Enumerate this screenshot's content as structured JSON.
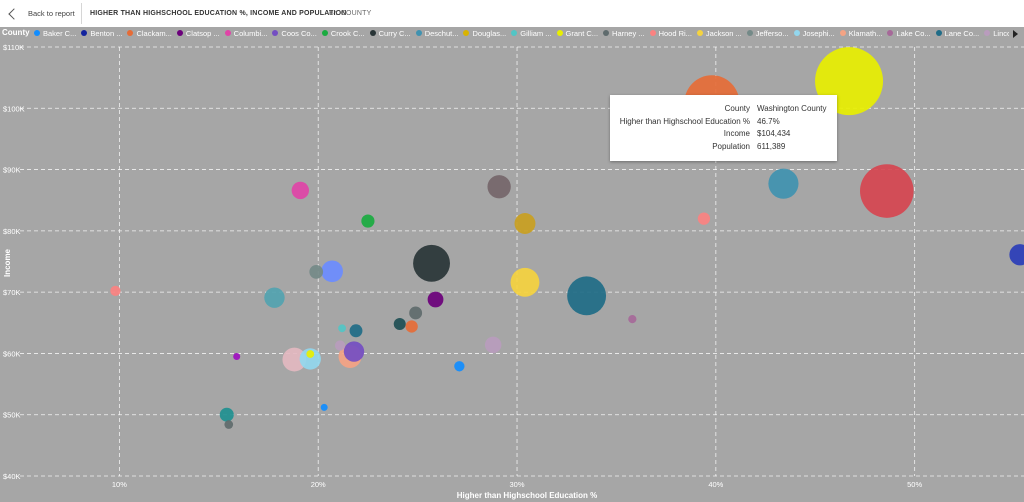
{
  "header": {
    "back_label": "Back to report",
    "title": "HIGHER THAN HIGHSCHOOL EDUCATION %, INCOME AND POPULATION",
    "subtitle": "BY COUNTY"
  },
  "legend": {
    "title": "County",
    "items": [
      {
        "label": "Baker C...",
        "color": "#118dff"
      },
      {
        "label": "Benton ...",
        "color": "#12239e"
      },
      {
        "label": "Clackam...",
        "color": "#e66c37"
      },
      {
        "label": "Clatsop ...",
        "color": "#6b007b"
      },
      {
        "label": "Columbi...",
        "color": "#e044a7"
      },
      {
        "label": "Coos Co...",
        "color": "#744ec2"
      },
      {
        "label": "Crook C...",
        "color": "#1aab40"
      },
      {
        "label": "Curry C...",
        "color": "#293537"
      },
      {
        "label": "Deschut...",
        "color": "#4092b0"
      },
      {
        "label": "Douglas...",
        "color": "#d9b300"
      },
      {
        "label": "Gilliam ...",
        "color": "#52c5c5"
      },
      {
        "label": "Grant C...",
        "color": "#e8ef00"
      },
      {
        "label": "Harney ...",
        "color": "#5f6b6d"
      },
      {
        "label": "Hood Ri...",
        "color": "#fb8281"
      },
      {
        "label": "Jackson ...",
        "color": "#f5d33f"
      },
      {
        "label": "Jefferso...",
        "color": "#748a88"
      },
      {
        "label": "Josephi...",
        "color": "#93d7ee"
      },
      {
        "label": "Klamath...",
        "color": "#f4a384"
      },
      {
        "label": "Lake Co...",
        "color": "#a66999"
      },
      {
        "label": "Lane Co...",
        "color": "#1f6c87"
      },
      {
        "label": "Lincoln ...",
        "color": "#b99cbd"
      }
    ]
  },
  "tooltip": {
    "rows": [
      {
        "key": "County",
        "value": "Washington County"
      },
      {
        "key": "Higher than Highschool Education %",
        "value": "46.7%"
      },
      {
        "key": "Income",
        "value": "$104,434"
      },
      {
        "key": "Population",
        "value": "611,389"
      }
    ]
  },
  "chart_data": {
    "type": "scatter",
    "xlabel": "Higher than Highschool Education %",
    "ylabel": "Income",
    "xlim": [
      5,
      55.5
    ],
    "ylim": [
      40000,
      110000
    ],
    "x_ticks": [
      10,
      20,
      30,
      40,
      50
    ],
    "x_tick_labels": [
      "10%",
      "20%",
      "30%",
      "40%",
      "50%"
    ],
    "y_ticks": [
      40000,
      50000,
      60000,
      70000,
      80000,
      90000,
      100000,
      110000
    ],
    "y_tick_labels": [
      "$40K",
      "$50K",
      "$60K",
      "$70K",
      "$80K",
      "$90K",
      "$100K",
      "$110K"
    ],
    "grid": true,
    "points": [
      {
        "x": 46.7,
        "y": 104434,
        "population": 611389,
        "color": "#e8ef00"
      },
      {
        "x": 39.8,
        "y": 100900,
        "population": 400000,
        "color": "#e66c37"
      },
      {
        "x": 48.6,
        "y": 86500,
        "population": 380000,
        "color": "#d64550"
      },
      {
        "x": 43.4,
        "y": 87700,
        "population": 120000,
        "color": "#4092b0"
      },
      {
        "x": 55.3,
        "y": 76100,
        "population": 60000,
        "color": "#2a3db8"
      },
      {
        "x": 39.4,
        "y": 82000,
        "population": 20000,
        "color": "#fb8281"
      },
      {
        "x": 29.1,
        "y": 87200,
        "population": 72000,
        "color": "#75666a"
      },
      {
        "x": 30.4,
        "y": 81200,
        "population": 58000,
        "color": "#c9a021"
      },
      {
        "x": 30.4,
        "y": 71600,
        "population": 110000,
        "color": "#f5d33f"
      },
      {
        "x": 33.5,
        "y": 69400,
        "population": 200000,
        "color": "#1f6c87"
      },
      {
        "x": 25.7,
        "y": 74700,
        "population": 180000,
        "color": "#293537"
      },
      {
        "x": 25.9,
        "y": 68800,
        "population": 33000,
        "color": "#6b007b"
      },
      {
        "x": 35.8,
        "y": 65600,
        "population": 9000,
        "color": "#a66999"
      },
      {
        "x": 28.8,
        "y": 61400,
        "population": 36000,
        "color": "#b99cbd"
      },
      {
        "x": 27.1,
        "y": 57900,
        "population": 14000,
        "color": "#118dff"
      },
      {
        "x": 24.9,
        "y": 66600,
        "population": 22000,
        "color": "#5f6b6d"
      },
      {
        "x": 24.7,
        "y": 64400,
        "population": 20000,
        "color": "#e66c37"
      },
      {
        "x": 24.1,
        "y": 64800,
        "population": 19000,
        "color": "#1f4f55"
      },
      {
        "x": 21.9,
        "y": 63700,
        "population": 22000,
        "color": "#1f6c87"
      },
      {
        "x": 22.5,
        "y": 81600,
        "population": 23000,
        "color": "#1aab40"
      },
      {
        "x": 19.1,
        "y": 86600,
        "population": 40000,
        "color": "#e044a7"
      },
      {
        "x": 20.7,
        "y": 73400,
        "population": 62000,
        "color": "#6b8cff"
      },
      {
        "x": 19.9,
        "y": 73300,
        "population": 25000,
        "color": "#748a88"
      },
      {
        "x": 17.8,
        "y": 69100,
        "population": 55000,
        "color": "#52a3b0"
      },
      {
        "x": 9.8,
        "y": 70200,
        "population": 14000,
        "color": "#fb8281"
      },
      {
        "x": 21.2,
        "y": 64100,
        "population": 8000,
        "color": "#52c5c5"
      },
      {
        "x": 21.6,
        "y": 59500,
        "population": 70000,
        "color": "#f4a384"
      },
      {
        "x": 21.8,
        "y": 60300,
        "population": 55000,
        "color": "#744ec2"
      },
      {
        "x": 21.1,
        "y": 61300,
        "population": 14000,
        "color": "#b99cbd"
      },
      {
        "x": 18.8,
        "y": 59000,
        "population": 75000,
        "color": "#e3b9c0"
      },
      {
        "x": 19.6,
        "y": 59100,
        "population": 60000,
        "color": "#93d7ee"
      },
      {
        "x": 19.6,
        "y": 59900,
        "population": 8000,
        "color": "#e8ef00"
      },
      {
        "x": 15.9,
        "y": 59500,
        "population": 6000,
        "color": "#a010c0"
      },
      {
        "x": 20.3,
        "y": 51200,
        "population": 5000,
        "color": "#118dff"
      },
      {
        "x": 15.4,
        "y": 50000,
        "population": 26000,
        "color": "#209090"
      },
      {
        "x": 15.5,
        "y": 48400,
        "population": 10000,
        "color": "#5f6b6d"
      }
    ]
  }
}
